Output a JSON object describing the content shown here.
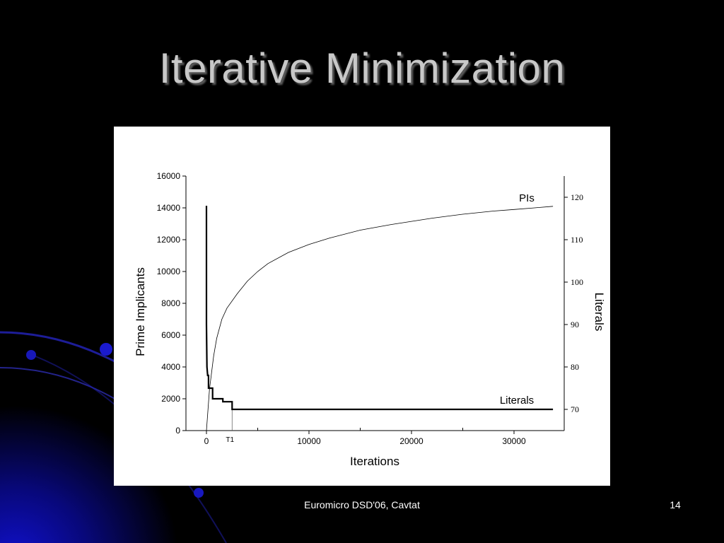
{
  "slide": {
    "title": "Iterative Minimization",
    "footer": "Euromicro DSD'06, Cavtat",
    "page_number": "14"
  },
  "colors": {
    "background": "#000000",
    "accent_blue": "#1a1aff",
    "title": "#c8c8c8"
  },
  "chart_data": {
    "type": "line",
    "xlabel": "Iterations",
    "ylabel": "Prime Implicants",
    "y2label": "Literals",
    "xlim": [
      -2000,
      35000
    ],
    "ylim": [
      0,
      16000
    ],
    "y2lim": [
      65,
      125
    ],
    "x_ticks": [
      0,
      10000,
      20000,
      30000
    ],
    "x_tick_labels": [
      "0",
      "10000",
      "20000",
      "30000"
    ],
    "x_marker": {
      "label": "T1",
      "x": 2500
    },
    "y_ticks": [
      0,
      2000,
      4000,
      6000,
      8000,
      10000,
      12000,
      14000,
      16000
    ],
    "y2_ticks": [
      70,
      80,
      90,
      100,
      110,
      120
    ],
    "grid": false,
    "series": [
      {
        "name": "PIs",
        "axis": "left",
        "style": "thin",
        "x": [
          0,
          300,
          700,
          1000,
          1500,
          2000,
          3000,
          4000,
          5000,
          6000,
          8000,
          10000,
          12000,
          15000,
          18000,
          20000,
          22000,
          25000,
          28000,
          30000,
          32000,
          33800
        ],
        "values": [
          0,
          2600,
          4700,
          5800,
          7000,
          7700,
          8600,
          9400,
          10000,
          10500,
          11200,
          11700,
          12100,
          12600,
          12950,
          13150,
          13350,
          13600,
          13800,
          13900,
          14000,
          14100
        ]
      },
      {
        "name": "Literals",
        "axis": "right",
        "style": "thick",
        "x": [
          0,
          0,
          50,
          120,
          200,
          200,
          600,
          600,
          1600,
          1600,
          2500,
          2500,
          33800
        ],
        "values": [
          118,
          90,
          80,
          78,
          78,
          75,
          75,
          72.5,
          72.5,
          71.8,
          71.8,
          70,
          70
        ]
      }
    ]
  }
}
